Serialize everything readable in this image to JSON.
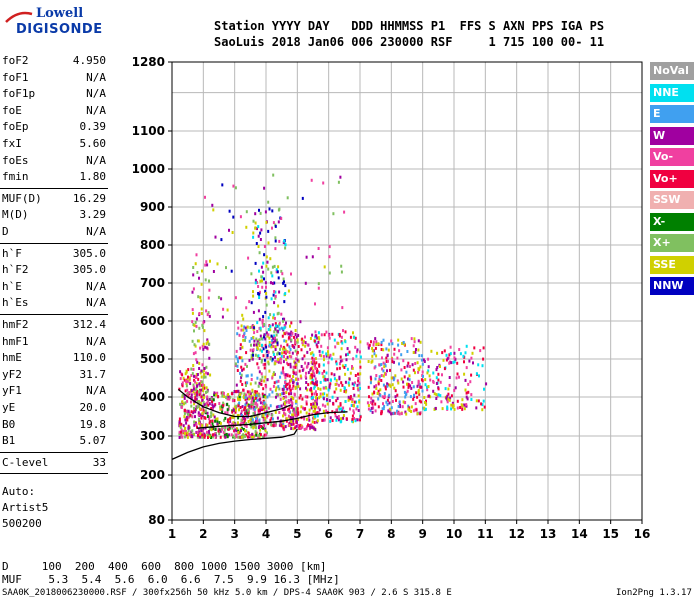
{
  "logo": {
    "line1": "Lowell",
    "line2": "DIGISONDE"
  },
  "header": {
    "line1": "Station YYYY DAY   DDD HHMMSS P1  FFS S AXN PPS IGA PS",
    "line2": "SaoLuis 2018 Jan06 006 230000 RSF     1 715 100 00- 11"
  },
  "params_group1": [
    {
      "name": "foF2",
      "value": "4.950"
    },
    {
      "name": "foF1",
      "value": "N/A"
    },
    {
      "name": "foF1p",
      "value": "N/A"
    },
    {
      "name": "foE",
      "value": "N/A"
    },
    {
      "name": "foEp",
      "value": "0.39"
    },
    {
      "name": "fxI",
      "value": "5.60"
    },
    {
      "name": "foEs",
      "value": "N/A"
    },
    {
      "name": "fmin",
      "value": "1.80"
    }
  ],
  "params_group2": [
    {
      "name": "MUF(D)",
      "value": "16.29"
    },
    {
      "name": "M(D)",
      "value": "3.29"
    },
    {
      "name": "D",
      "value": "N/A"
    }
  ],
  "params_group3": [
    {
      "name": "h`F",
      "value": "305.0"
    },
    {
      "name": "h`F2",
      "value": "305.0"
    },
    {
      "name": "h`E",
      "value": "N/A"
    },
    {
      "name": "h`Es",
      "value": "N/A"
    }
  ],
  "params_group4": [
    {
      "name": "hmF2",
      "value": "312.4"
    },
    {
      "name": "hmF1",
      "value": "N/A"
    },
    {
      "name": "hmE",
      "value": "110.0"
    },
    {
      "name": "yF2",
      "value": "31.7"
    },
    {
      "name": "yF1",
      "value": "N/A"
    },
    {
      "name": "yE",
      "value": "20.0"
    },
    {
      "name": "B0",
      "value": "19.8"
    },
    {
      "name": "B1",
      "value": "5.07"
    }
  ],
  "params_group5": [
    {
      "name": "C-level",
      "value": "33"
    }
  ],
  "autoscale": {
    "line1": "Auto:",
    "line2": "Artist5",
    "line3": "500200"
  },
  "legend": [
    {
      "label": "NoVal",
      "color": "#a0a0a0"
    },
    {
      "label": "NNE",
      "color": "#00e0f0"
    },
    {
      "label": "E",
      "color": "#40a0f0"
    },
    {
      "label": "W",
      "color": "#a000a0"
    },
    {
      "label": "Vo-",
      "color": "#f040a0"
    },
    {
      "label": "Vo+",
      "color": "#f00040"
    },
    {
      "label": "SSW",
      "color": "#f0b0b0"
    },
    {
      "label": "X-",
      "color": "#008000"
    },
    {
      "label": "X+",
      "color": "#80c060"
    },
    {
      "label": "SSE",
      "color": "#d0d000"
    },
    {
      "label": "NNW",
      "color": "#0000c0"
    }
  ],
  "bottom": {
    "d_line": "D     100  200  400  600  800 1000 1500 3000 [km]",
    "muf_line": "MUF    5.3  5.4  5.6  6.0  6.6  7.5  9.9 16.3 [MHz]",
    "footer_left": "SAA0K_2018006230000.RSF / 300fx256h 50 kHz 5.0 km / DPS-4 SAA0K 903 / 2.6 S 315.8 E",
    "footer_right": "Ion2Png 1.3.17"
  },
  "chart_data": {
    "type": "scatter",
    "xlim": [
      1,
      16
    ],
    "ylim": [
      80,
      1280
    ],
    "x_ticks": [
      "1",
      "2",
      "3",
      "4",
      "5",
      "6",
      "7",
      "8",
      "9",
      "10",
      "11",
      "12",
      "13",
      "14",
      "15",
      "16"
    ],
    "y_ticks": [
      "80",
      "200",
      "300",
      "400",
      "500",
      "600",
      "700",
      "800",
      "900",
      "1000",
      "1100",
      "1280"
    ],
    "grid": true,
    "clusters": [
      {
        "x0": 1.2,
        "x1": 2.0,
        "y0": 300,
        "y1": 480,
        "count": 260,
        "colors": [
          "#f040a0",
          "#f00040",
          "#a000a0",
          "#d0d000",
          "#80c060"
        ]
      },
      {
        "x0": 1.6,
        "x1": 2.2,
        "y0": 420,
        "y1": 780,
        "count": 90,
        "colors": [
          "#a000a0",
          "#80c060",
          "#d0d000",
          "#f040a0"
        ]
      },
      {
        "x0": 2.0,
        "x1": 4.0,
        "y0": 300,
        "y1": 420,
        "count": 420,
        "colors": [
          "#f040a0",
          "#f00040",
          "#a000a0",
          "#d0d000",
          "#80c060",
          "#008000"
        ]
      },
      {
        "x0": 3.0,
        "x1": 5.0,
        "y0": 330,
        "y1": 600,
        "count": 380,
        "colors": [
          "#f040a0",
          "#f00040",
          "#a000a0",
          "#d0d000",
          "#80c060",
          "#40a0f0"
        ]
      },
      {
        "x0": 3.5,
        "x1": 4.6,
        "y0": 500,
        "y1": 900,
        "count": 200,
        "colors": [
          "#a000a0",
          "#80c060",
          "#d0d000",
          "#f040a0",
          "#00e0f0",
          "#0000c0"
        ]
      },
      {
        "x0": 4.5,
        "x1": 5.6,
        "y0": 320,
        "y1": 580,
        "count": 260,
        "colors": [
          "#d0d000",
          "#f040a0",
          "#f00040",
          "#a000a0"
        ]
      },
      {
        "x0": 5.4,
        "x1": 7.0,
        "y0": 340,
        "y1": 580,
        "count": 300,
        "colors": [
          "#f040a0",
          "#f00040",
          "#a000a0",
          "#d0d000",
          "#00e0f0"
        ]
      },
      {
        "x0": 7.2,
        "x1": 9.0,
        "y0": 360,
        "y1": 560,
        "count": 280,
        "colors": [
          "#f040a0",
          "#f00040",
          "#a000a0",
          "#d0d000",
          "#40a0f0"
        ]
      },
      {
        "x0": 9.0,
        "x1": 11.0,
        "y0": 370,
        "y1": 540,
        "count": 160,
        "colors": [
          "#f040a0",
          "#a000a0",
          "#d0d000",
          "#00e0f0",
          "#f00040"
        ]
      },
      {
        "x0": 2.0,
        "x1": 6.5,
        "y0": 600,
        "y1": 1000,
        "count": 70,
        "colors": [
          "#a000a0",
          "#80c060",
          "#f040a0",
          "#0000c0",
          "#d0d000"
        ]
      }
    ],
    "lines": [
      {
        "name": "trace_upper",
        "color": "#000000",
        "points": [
          [
            1.2,
            420
          ],
          [
            1.5,
            400
          ],
          [
            2.0,
            375
          ],
          [
            2.5,
            360
          ],
          [
            3.0,
            350
          ],
          [
            3.5,
            350
          ],
          [
            4.0,
            360
          ],
          [
            4.5,
            370
          ],
          [
            4.8,
            380
          ]
        ]
      },
      {
        "name": "trace_mid",
        "color": "#000000",
        "points": [
          [
            1.8,
            320
          ],
          [
            2.5,
            325
          ],
          [
            3.5,
            330
          ],
          [
            4.5,
            338
          ],
          [
            5.0,
            345
          ],
          [
            5.5,
            355
          ],
          [
            6.0,
            360
          ],
          [
            6.6,
            362
          ]
        ]
      },
      {
        "name": "profile",
        "color": "#000000",
        "points": [
          [
            1.0,
            240
          ],
          [
            1.5,
            258
          ],
          [
            2.0,
            272
          ],
          [
            2.5,
            281
          ],
          [
            3.0,
            287
          ],
          [
            3.5,
            291
          ],
          [
            4.0,
            294
          ],
          [
            4.5,
            297
          ],
          [
            4.9,
            305
          ],
          [
            5.0,
            318
          ]
        ]
      }
    ]
  }
}
